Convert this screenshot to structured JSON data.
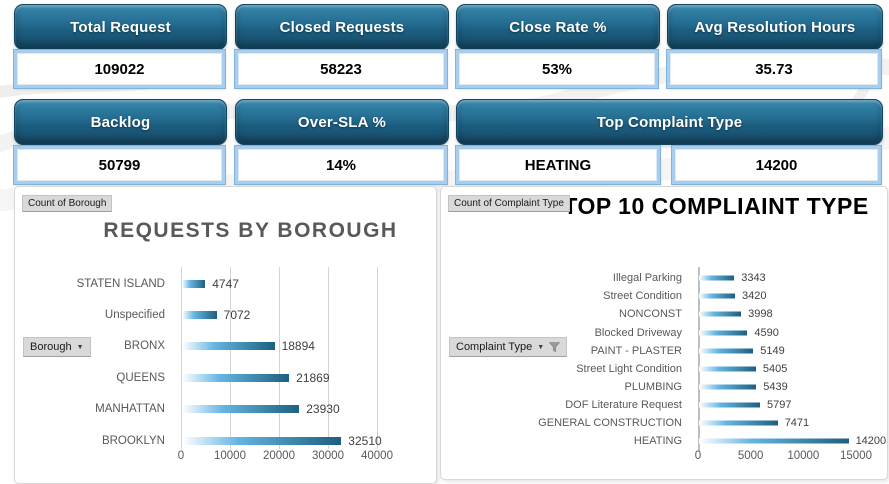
{
  "kpis": {
    "row1": [
      {
        "label": "Total Request",
        "value": "109022"
      },
      {
        "label": "Closed Requests",
        "value": "58223"
      },
      {
        "label": "Close Rate %",
        "value": "53%"
      },
      {
        "label": "Avg Resolution Hours",
        "value": "35.73"
      }
    ],
    "row2": [
      {
        "label": "Backlog",
        "value": "50799"
      },
      {
        "label": "Over-SLA %",
        "value": "14%"
      },
      {
        "label": "Top Complaint Type",
        "value": "HEATING",
        "value2": "14200"
      }
    ]
  },
  "colors": {
    "kpi_button": "#23688C",
    "kpi_value_border": "#A9CDEC",
    "bar_dark": "#1D5F80",
    "bar_light": "#D3EAF8",
    "title_gray": "#595959",
    "title_black": "#000000"
  },
  "chart_data": [
    {
      "type": "bar",
      "orientation": "horizontal",
      "title": "REQUESTS BY BOROUGH",
      "field_button": "Count of Borough",
      "filter_button": "Borough",
      "categories": [
        "STATEN ISLAND",
        "Unspecified",
        "BRONX",
        "QUEENS",
        "MANHATTAN",
        "BROOKLYN"
      ],
      "values": [
        4747,
        7072,
        18894,
        21869,
        23930,
        32510
      ],
      "xlim": [
        0,
        40000
      ],
      "xticks": [
        0,
        10000,
        20000,
        30000,
        40000
      ],
      "grid": true,
      "data_labels": true,
      "legend": "none"
    },
    {
      "type": "bar",
      "orientation": "horizontal",
      "title": "TOP 10 COMPLIAINT TYPE",
      "field_button": "Count of Complaint Type",
      "filter_button": "Complaint Type",
      "filter_active": true,
      "categories": [
        "Illegal Parking",
        "Street Condition",
        "NONCONST",
        "Blocked Driveway",
        "PAINT - PLASTER",
        "Street Light Condition",
        "PLUMBING",
        "DOF Literature Request",
        "GENERAL CONSTRUCTION",
        "HEATING"
      ],
      "values": [
        3343,
        3420,
        3998,
        4590,
        5149,
        5405,
        5439,
        5797,
        7471,
        14200
      ],
      "xlim": [
        0,
        15000
      ],
      "xticks": [
        0,
        5000,
        10000,
        15000
      ],
      "grid": false,
      "data_labels": true,
      "legend": "none"
    }
  ]
}
